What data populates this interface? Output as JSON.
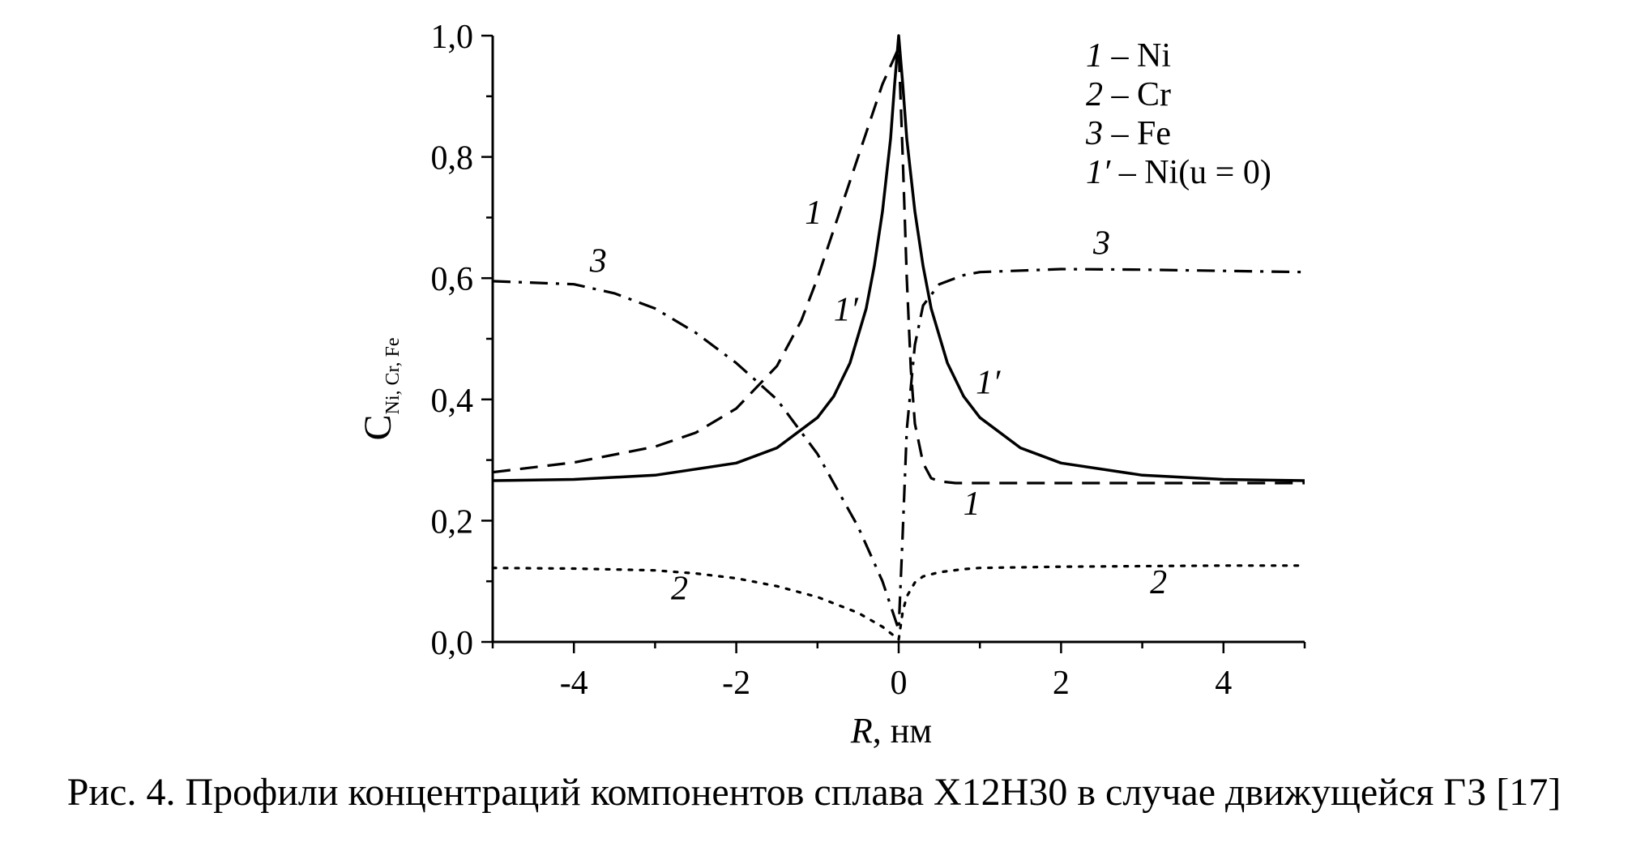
{
  "caption": "Рис. 4. Профили концентраций компонентов сплава Х12Н30 в случае движущейся ГЗ [17]",
  "chart_data": {
    "type": "line",
    "xlabel_italic": "R",
    "xlabel_rest": ", нм",
    "ylabel_main": "C",
    "ylabel_sub": "Ni, Cr, Fe",
    "xlim": [
      -5,
      5
    ],
    "ylim": [
      0,
      1
    ],
    "x_ticks": [
      -4,
      -2,
      0,
      2,
      4
    ],
    "x_tick_labels": [
      "-4",
      "-2",
      "0",
      "2",
      "4"
    ],
    "y_ticks": [
      0,
      0.2,
      0.4,
      0.6,
      0.8,
      1.0
    ],
    "y_tick_labels": [
      "0,0",
      "0,2",
      "0,4",
      "0,6",
      "0,8",
      "1,0"
    ],
    "legend_position": "top-right",
    "legend": [
      {
        "num": "1",
        "text": " – Ni"
      },
      {
        "num": "2",
        "text": " – Cr"
      },
      {
        "num": "3",
        "text": " – Fe"
      },
      {
        "num": "1′",
        "text": " – Ni(u = 0)"
      }
    ],
    "series": [
      {
        "style": "dashed",
        "x": [
          -5,
          -4,
          -3,
          -2.5,
          -2,
          -1.5,
          -1.2,
          -1.0,
          -0.8,
          -0.6,
          -0.4,
          -0.2,
          -0.1,
          0,
          0.05,
          0.1,
          0.15,
          0.2,
          0.3,
          0.4,
          0.5,
          0.7,
          1.0,
          2,
          3,
          4,
          5
        ],
        "y": [
          0.28,
          0.296,
          0.322,
          0.345,
          0.385,
          0.455,
          0.53,
          0.6,
          0.68,
          0.76,
          0.84,
          0.92,
          0.95,
          0.98,
          0.8,
          0.6,
          0.45,
          0.36,
          0.295,
          0.27,
          0.265,
          0.262,
          0.262,
          0.262,
          0.262,
          0.262,
          0.262
        ]
      },
      {
        "style": "solid",
        "x": [
          -5,
          -4,
          -3,
          -2,
          -1.5,
          -1.0,
          -0.8,
          -0.6,
          -0.4,
          -0.3,
          -0.2,
          -0.1,
          -0.05,
          0,
          0.05,
          0.1,
          0.2,
          0.3,
          0.4,
          0.6,
          0.8,
          1.0,
          1.5,
          2,
          3,
          4,
          5
        ],
        "y": [
          0.266,
          0.268,
          0.275,
          0.295,
          0.32,
          0.37,
          0.405,
          0.46,
          0.55,
          0.62,
          0.71,
          0.83,
          0.92,
          1.0,
          0.92,
          0.83,
          0.71,
          0.62,
          0.55,
          0.46,
          0.405,
          0.37,
          0.32,
          0.295,
          0.275,
          0.268,
          0.266
        ]
      },
      {
        "style": "dashdot",
        "x": [
          -5,
          -4,
          -3.5,
          -3,
          -2.5,
          -2,
          -1.5,
          -1.0,
          -0.5,
          -0.2,
          0,
          0.05,
          0.1,
          0.2,
          0.3,
          0.5,
          0.8,
          1.0,
          2,
          3,
          4,
          5
        ],
        "y": [
          0.595,
          0.59,
          0.575,
          0.55,
          0.51,
          0.46,
          0.4,
          0.31,
          0.19,
          0.1,
          0.02,
          0.18,
          0.35,
          0.49,
          0.555,
          0.59,
          0.605,
          0.61,
          0.615,
          0.614,
          0.612,
          0.61
        ]
      },
      {
        "style": "dotted",
        "x": [
          -5,
          -4,
          -3,
          -2.5,
          -2,
          -1.5,
          -1.0,
          -0.5,
          -0.2,
          0,
          0.05,
          0.1,
          0.2,
          0.3,
          0.5,
          0.8,
          1.0,
          2,
          3,
          4,
          5
        ],
        "y": [
          0.122,
          0.121,
          0.118,
          0.113,
          0.105,
          0.092,
          0.074,
          0.048,
          0.025,
          0.004,
          0.05,
          0.075,
          0.098,
          0.108,
          0.115,
          0.12,
          0.122,
          0.124,
          0.125,
          0.126,
          0.126
        ]
      }
    ],
    "curve_labels": [
      {
        "text": "1",
        "x": -1.05,
        "y": 0.69
      },
      {
        "text": "1′",
        "x": -0.65,
        "y": 0.53
      },
      {
        "text": "3",
        "x": -3.7,
        "y": 0.61
      },
      {
        "text": "2",
        "x": -2.7,
        "y": 0.07
      },
      {
        "text": "1′",
        "x": 1.1,
        "y": 0.41
      },
      {
        "text": "1",
        "x": 0.9,
        "y": 0.21
      },
      {
        "text": "3",
        "x": 2.5,
        "y": 0.64
      },
      {
        "text": "2",
        "x": 3.2,
        "y": 0.08
      }
    ]
  }
}
